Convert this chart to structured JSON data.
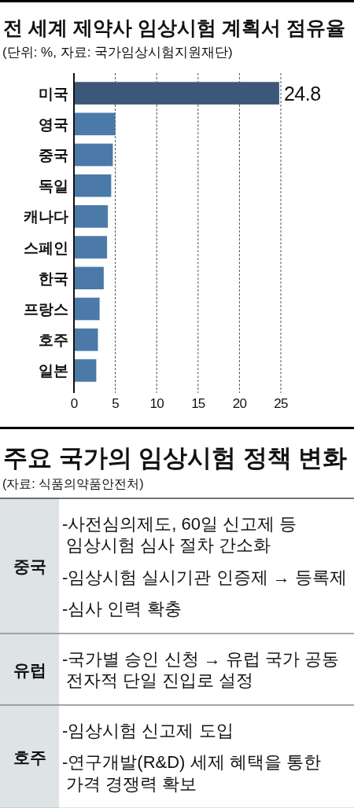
{
  "chart_data": [
    {
      "type": "bar",
      "title": "전 세계 제약사 임상시험 계획서 점유율",
      "subtitle": "(단위: %, 자료: 국가임상시험지원재단)",
      "orientation": "horizontal",
      "categories": [
        "미국",
        "영국",
        "중국",
        "독일",
        "캐나다",
        "스페인",
        "한국",
        "프랑스",
        "호주",
        "일본"
      ],
      "values": [
        24.8,
        5.0,
        4.7,
        4.5,
        4.1,
        4.0,
        3.6,
        3.1,
        2.9,
        2.7
      ],
      "colors": [
        "#3c5878",
        "#4b7aa8",
        "#4b7aa8",
        "#4b7aa8",
        "#4b7aa8",
        "#4b7aa8",
        "#4b7aa8",
        "#4b7aa8",
        "#4b7aa8",
        "#4b7aa8"
      ],
      "value_labels": [
        "24.8",
        null,
        null,
        null,
        null,
        null,
        null,
        null,
        null,
        null
      ],
      "xlim": [
        0,
        25
      ],
      "xticks": [
        0,
        5,
        10,
        15,
        20,
        25
      ],
      "grid": "x"
    },
    {
      "type": "other",
      "title": "주요 국가의 임상시험 정책 변화",
      "subtitle": "(자료: 식품의약품안전처)",
      "y_categories": [
        "중국",
        "유럽",
        "호주"
      ],
      "cell_labels": [
        [
          "-사전심의제도, 60일 신고제 등\n임상시험 심사 절차 간소화",
          "-임상시험 실시기관 인증제 → 등록제",
          "-심사 인력 확충"
        ],
        [
          "-국가별 승인 신청 → 유럽 국가 공동\n전자적 단일 진입로 설정"
        ],
        [
          "-임상시험 신고제 도입",
          "-연구개발(R&D) 세제 혜택을 통한\n가격 경쟁력 확보"
        ]
      ]
    }
  ]
}
